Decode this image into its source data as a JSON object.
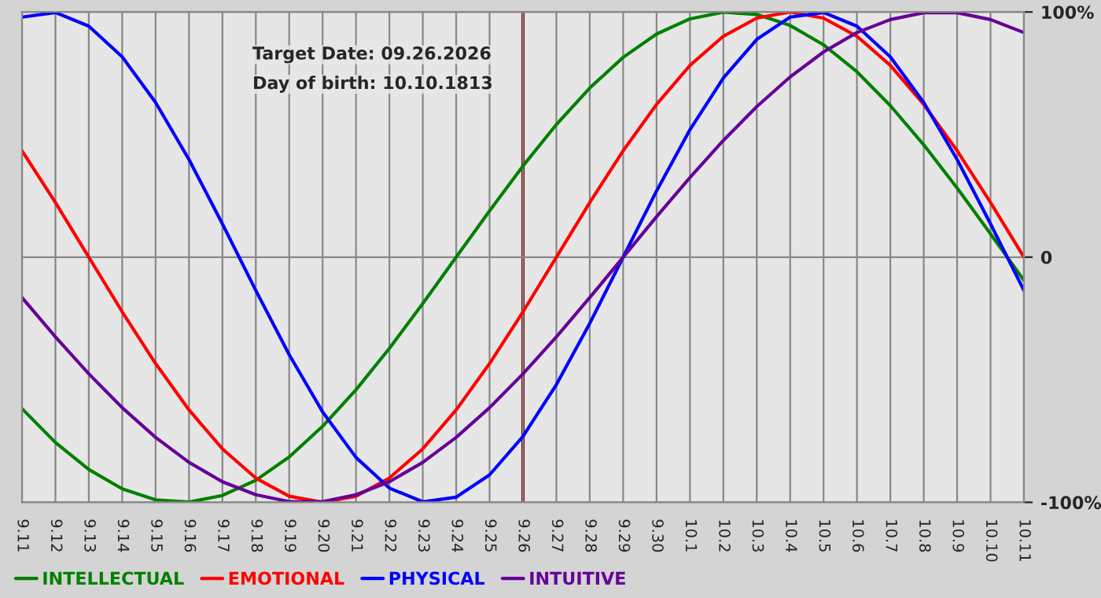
{
  "chart_data": {
    "type": "line",
    "categories": [
      "9.11",
      "9.12",
      "9.13",
      "9.14",
      "9.15",
      "9.16",
      "9.17",
      "9.18",
      "9.19",
      "9.20",
      "9.21",
      "9.22",
      "9.23",
      "9.24",
      "9.25",
      "9.26",
      "9.27",
      "9.28",
      "9.29",
      "9.30",
      "10.1",
      "10.2",
      "10.3",
      "10.4",
      "10.5",
      "10.6",
      "10.7",
      "10.8",
      "10.9",
      "10.10",
      "10.11"
    ],
    "series": [
      {
        "name": "INTELLECTUAL",
        "color": "#008000",
        "values": [
          -61.8,
          -75.6,
          -86.6,
          -94.5,
          -99.0,
          -99.9,
          -97.2,
          -91.0,
          -81.5,
          -69.0,
          -54.1,
          -37.2,
          -18.9,
          0,
          18.9,
          37.2,
          54.1,
          69.0,
          81.5,
          91.0,
          97.2,
          99.9,
          99.0,
          94.5,
          86.6,
          75.6,
          61.8,
          45.8,
          28.2,
          9.5,
          -9.5
        ]
      },
      {
        "name": "EMOTIONAL",
        "color": "#ff0000",
        "values": [
          43.4,
          22.3,
          0,
          -22.3,
          -43.4,
          -62.3,
          -78.2,
          -90.1,
          -97.5,
          -100,
          -97.5,
          -90.1,
          -78.2,
          -62.3,
          -43.4,
          -22.3,
          0,
          22.3,
          43.4,
          62.3,
          78.2,
          90.1,
          97.5,
          100,
          97.5,
          90.1,
          78.2,
          62.3,
          43.4,
          22.3,
          0
        ]
      },
      {
        "name": "PHYSICAL",
        "color": "#0000ff",
        "values": [
          97.9,
          99.8,
          94.2,
          81.7,
          63.1,
          39.8,
          13.6,
          -13.6,
          -39.8,
          -63.1,
          -81.7,
          -94.2,
          -99.8,
          -97.9,
          -88.8,
          -73.1,
          -52.0,
          -27.0,
          0,
          27.0,
          52.0,
          73.1,
          88.8,
          97.9,
          99.8,
          94.2,
          81.7,
          63.1,
          39.8,
          13.6,
          -13.6
        ]
      },
      {
        "name": "INTUITIVE",
        "color": "#660099",
        "values": [
          -16.5,
          -32.5,
          -47.6,
          -61.4,
          -73.5,
          -83.7,
          -91.6,
          -96.9,
          -99.7,
          -99.7,
          -96.9,
          -91.6,
          -83.7,
          -73.5,
          -61.4,
          -47.6,
          -32.5,
          -16.5,
          0,
          16.5,
          32.5,
          47.6,
          61.4,
          73.5,
          83.7,
          91.6,
          96.9,
          99.7,
          99.7,
          96.9,
          91.6
        ]
      }
    ],
    "ylim": [
      -100,
      100
    ],
    "yticks": [
      {
        "value": 100,
        "label": "100%"
      },
      0,
      {
        "value": -100,
        "label": "-100%"
      }
    ],
    "ref_lines": [
      {
        "axis": "x",
        "value": "9.26",
        "color": "#800000"
      }
    ],
    "annotations": [
      "Target Date: 09.26.2026",
      "Day of birth: 10.10.1813"
    ],
    "grid": true,
    "legend": "bottom",
    "marker": "none",
    "line_style": "solid"
  }
}
